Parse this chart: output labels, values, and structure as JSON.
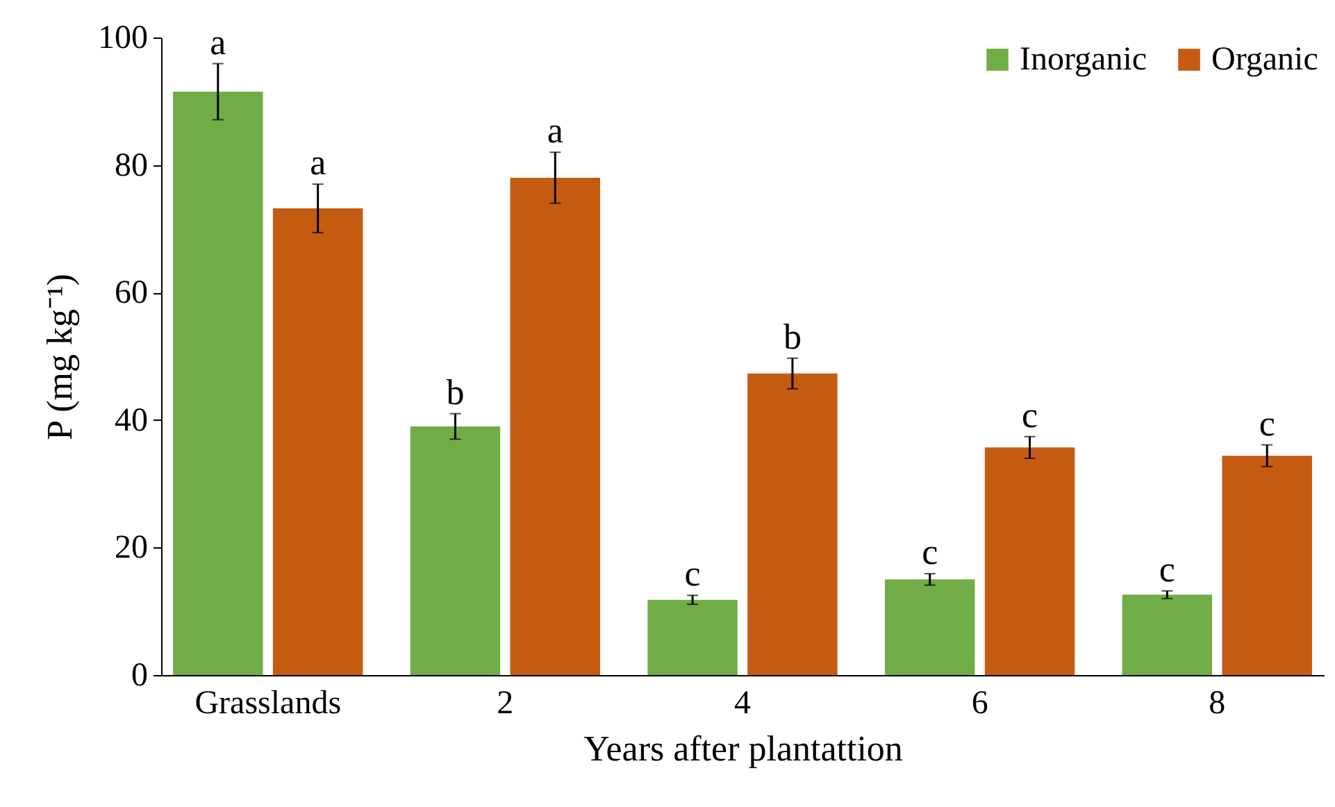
{
  "chart_data": {
    "type": "bar",
    "xlabel": "Years after plantattion",
    "ylabel": "P (mg kg⁻¹)",
    "categories": [
      "Grasslands",
      "2",
      "4",
      "6",
      "8"
    ],
    "series": [
      {
        "name": "Inorganic",
        "color": "#70ad47",
        "values": [
          91.5,
          39.0,
          11.8,
          15.0,
          12.6
        ],
        "errors": [
          4.4,
          2.0,
          0.7,
          0.9,
          0.6
        ]
      },
      {
        "name": "Organic",
        "color": "#c55a11",
        "values": [
          73.2,
          78.0,
          47.3,
          35.7,
          34.4
        ],
        "errors": [
          3.8,
          4.0,
          2.4,
          1.7,
          1.7
        ]
      }
    ],
    "ylim": [
      0,
      100
    ],
    "yticks": [
      0,
      20,
      40,
      60,
      80,
      100
    ],
    "grid": false,
    "legend": "top right",
    "annotations": [
      {
        "text": "a",
        "x": "Grasslands",
        "y": 91.5
      },
      {
        "text": "a",
        "x": "Grasslands",
        "y": 73.2
      },
      {
        "text": "b",
        "x": "2",
        "y": 39.0
      },
      {
        "text": "a",
        "x": "2",
        "y": 78.0
      },
      {
        "text": "c",
        "x": "4",
        "y": 11.8
      },
      {
        "text": "b",
        "x": "4",
        "y": 47.3
      },
      {
        "text": "c",
        "x": "6",
        "y": 15.0
      },
      {
        "text": "c",
        "x": "6",
        "y": 35.7
      },
      {
        "text": "c",
        "x": "8",
        "y": 12.6
      },
      {
        "text": "c",
        "x": "8",
        "y": 34.4
      }
    ]
  }
}
